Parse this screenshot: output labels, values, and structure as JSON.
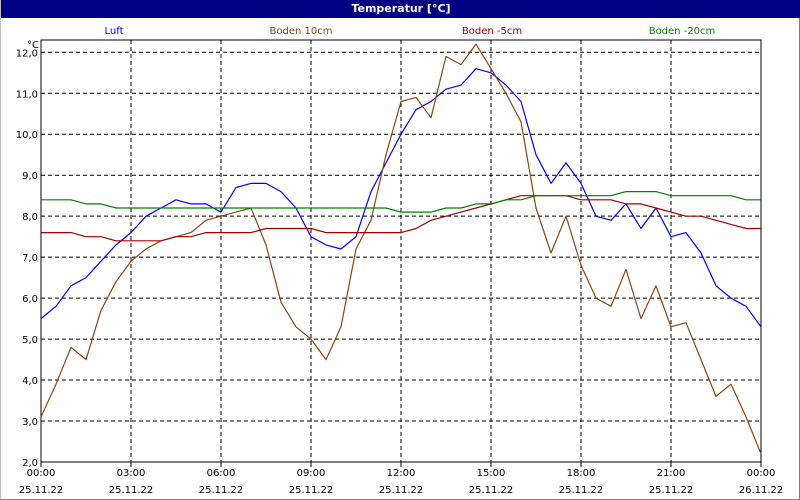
{
  "window": {
    "title": "Temperatur [°C]"
  },
  "chart_data": {
    "type": "line",
    "title": "Temperatur [°C]",
    "ylabel": "°C",
    "ylim": [
      2.0,
      12.3
    ],
    "xlim": [
      "25.11.22 00:00",
      "26.11.22 00:00"
    ],
    "grid": true,
    "legend_position": "top",
    "yticks": [
      "2,0",
      "3,0",
      "4,0",
      "5,0",
      "6,0",
      "7,0",
      "8,0",
      "9,0",
      "10,0",
      "11,0",
      "12,0"
    ],
    "xticks": [
      {
        "time": "00:00",
        "date": "25.11.22"
      },
      {
        "time": "03:00",
        "date": "25.11.22"
      },
      {
        "time": "06:00",
        "date": "25.11.22"
      },
      {
        "time": "09:00",
        "date": "25.11.22"
      },
      {
        "time": "12:00",
        "date": "25.11.22"
      },
      {
        "time": "15:00",
        "date": "25.11.22"
      },
      {
        "time": "18:00",
        "date": "25.11.22"
      },
      {
        "time": "21:00",
        "date": "25.11.22"
      },
      {
        "time": "00:00",
        "date": "26.11.22"
      }
    ],
    "x": [
      "00:00",
      "00:30",
      "01:00",
      "01:30",
      "02:00",
      "02:30",
      "03:00",
      "03:30",
      "04:00",
      "04:30",
      "05:00",
      "05:30",
      "06:00",
      "06:30",
      "07:00",
      "07:30",
      "08:00",
      "08:30",
      "09:00",
      "09:30",
      "10:00",
      "10:30",
      "11:00",
      "11:30",
      "12:00",
      "12:30",
      "13:00",
      "13:30",
      "14:00",
      "14:30",
      "15:00",
      "15:30",
      "16:00",
      "16:30",
      "17:00",
      "17:30",
      "18:00",
      "18:30",
      "19:00",
      "19:30",
      "20:00",
      "20:30",
      "21:00",
      "21:30",
      "22:00",
      "22:30",
      "23:00",
      "23:30",
      "00:00"
    ],
    "series": [
      {
        "name": "Luft",
        "color": "#0000ff",
        "values": [
          5.5,
          5.8,
          6.3,
          6.5,
          6.9,
          7.3,
          7.6,
          8.0,
          8.2,
          8.4,
          8.3,
          8.3,
          8.1,
          8.7,
          8.8,
          8.8,
          8.6,
          8.2,
          7.5,
          7.3,
          7.2,
          7.5,
          8.6,
          9.3,
          10.0,
          10.6,
          10.8,
          11.1,
          11.2,
          11.6,
          11.5,
          11.2,
          10.8,
          9.5,
          8.8,
          9.3,
          8.8,
          8.0,
          7.9,
          8.3,
          7.7,
          8.2,
          7.5,
          7.6,
          7.1,
          6.3,
          6.0,
          5.8,
          5.3
        ]
      },
      {
        "name": "Boden 10cm",
        "color": "#8b4513",
        "values": [
          3.1,
          3.9,
          4.8,
          4.5,
          5.7,
          6.4,
          6.9,
          7.2,
          7.4,
          7.5,
          7.6,
          7.9,
          8.0,
          8.1,
          8.2,
          7.3,
          5.9,
          5.3,
          5.0,
          4.5,
          5.3,
          7.2,
          7.9,
          9.5,
          10.8,
          10.9,
          10.4,
          11.9,
          11.7,
          12.2,
          11.6,
          11.0,
          10.3,
          8.2,
          7.1,
          8.0,
          6.8,
          6.0,
          5.8,
          6.7,
          5.5,
          6.3,
          5.3,
          5.4,
          4.5,
          3.6,
          3.9,
          3.1,
          2.2
        ]
      },
      {
        "name": "Boden -5cm",
        "color": "#a00000",
        "values": [
          7.6,
          7.6,
          7.6,
          7.5,
          7.5,
          7.4,
          7.4,
          7.4,
          7.4,
          7.5,
          7.5,
          7.6,
          7.6,
          7.6,
          7.6,
          7.7,
          7.7,
          7.7,
          7.7,
          7.6,
          7.6,
          7.6,
          7.6,
          7.6,
          7.6,
          7.7,
          7.9,
          8.0,
          8.1,
          8.2,
          8.3,
          8.4,
          8.5,
          8.5,
          8.5,
          8.5,
          8.4,
          8.4,
          8.4,
          8.3,
          8.3,
          8.2,
          8.1,
          8.0,
          8.0,
          7.9,
          7.8,
          7.7,
          7.7
        ]
      },
      {
        "name": "Boden -20cm",
        "color": "#008000",
        "values": [
          8.4,
          8.4,
          8.4,
          8.3,
          8.3,
          8.2,
          8.2,
          8.2,
          8.2,
          8.2,
          8.2,
          8.2,
          8.2,
          8.2,
          8.2,
          8.2,
          8.2,
          8.2,
          8.2,
          8.2,
          8.2,
          8.2,
          8.2,
          8.2,
          8.1,
          8.1,
          8.1,
          8.2,
          8.2,
          8.3,
          8.3,
          8.4,
          8.4,
          8.5,
          8.5,
          8.5,
          8.5,
          8.5,
          8.5,
          8.6,
          8.6,
          8.6,
          8.5,
          8.5,
          8.5,
          8.5,
          8.5,
          8.4,
          8.4
        ]
      }
    ]
  }
}
